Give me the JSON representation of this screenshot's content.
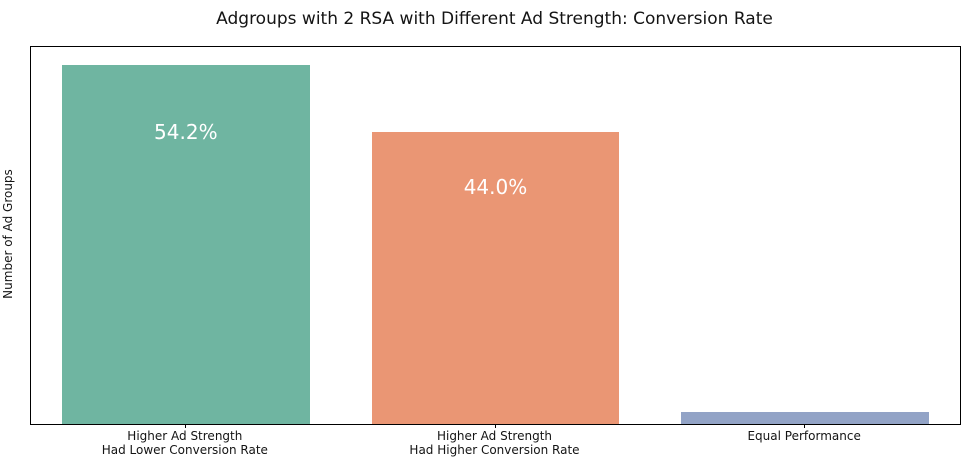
{
  "chart_data": {
    "type": "bar",
    "title": "Adgroups with 2 RSA with Different Ad Strength: Conversion Rate",
    "xlabel": "",
    "ylabel": "Number of Ad Groups",
    "categories": [
      "Higher Ad Strength\nHad Lower Conversion Rate",
      "Higher Ad Strength\nHad Higher Conversion Rate",
      "Equal Performance"
    ],
    "values": [
      54.2,
      44.0,
      1.8
    ],
    "bar_labels": [
      "54.2%",
      "44.0%",
      ""
    ],
    "bar_label_color": "#ffffff",
    "colors": [
      "#6fb5a1",
      "#ea9674",
      "#92a3c6"
    ],
    "ylim": [
      0,
      56.9
    ],
    "grid": false,
    "legend": null,
    "y_tick_labels_visible": false,
    "spine_color": "#000000"
  }
}
